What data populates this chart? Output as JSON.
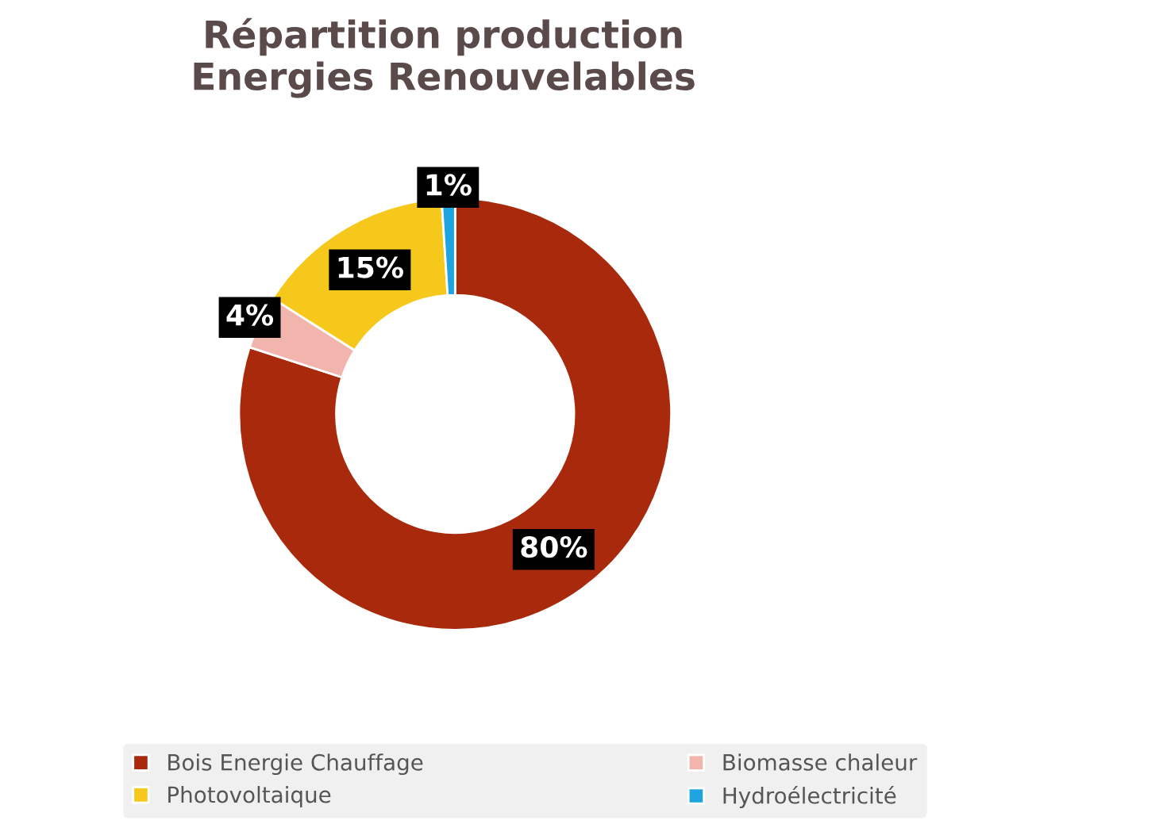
{
  "chart_data": {
    "type": "donut",
    "title": "Répartition production\nEnergies Renouvelables",
    "categories": [
      "Bois Energie Chauffage",
      "Biomasse chaleur",
      "Photovoltaique",
      "Hydroélectricité"
    ],
    "values": [
      80,
      4,
      15,
      1
    ],
    "value_labels": [
      "80%",
      "4%",
      "15%",
      "1%"
    ],
    "colors": [
      "#a8290c",
      "#f2b5ae",
      "#f7c81c",
      "#1ea5e0"
    ],
    "legend": "bottom"
  }
}
